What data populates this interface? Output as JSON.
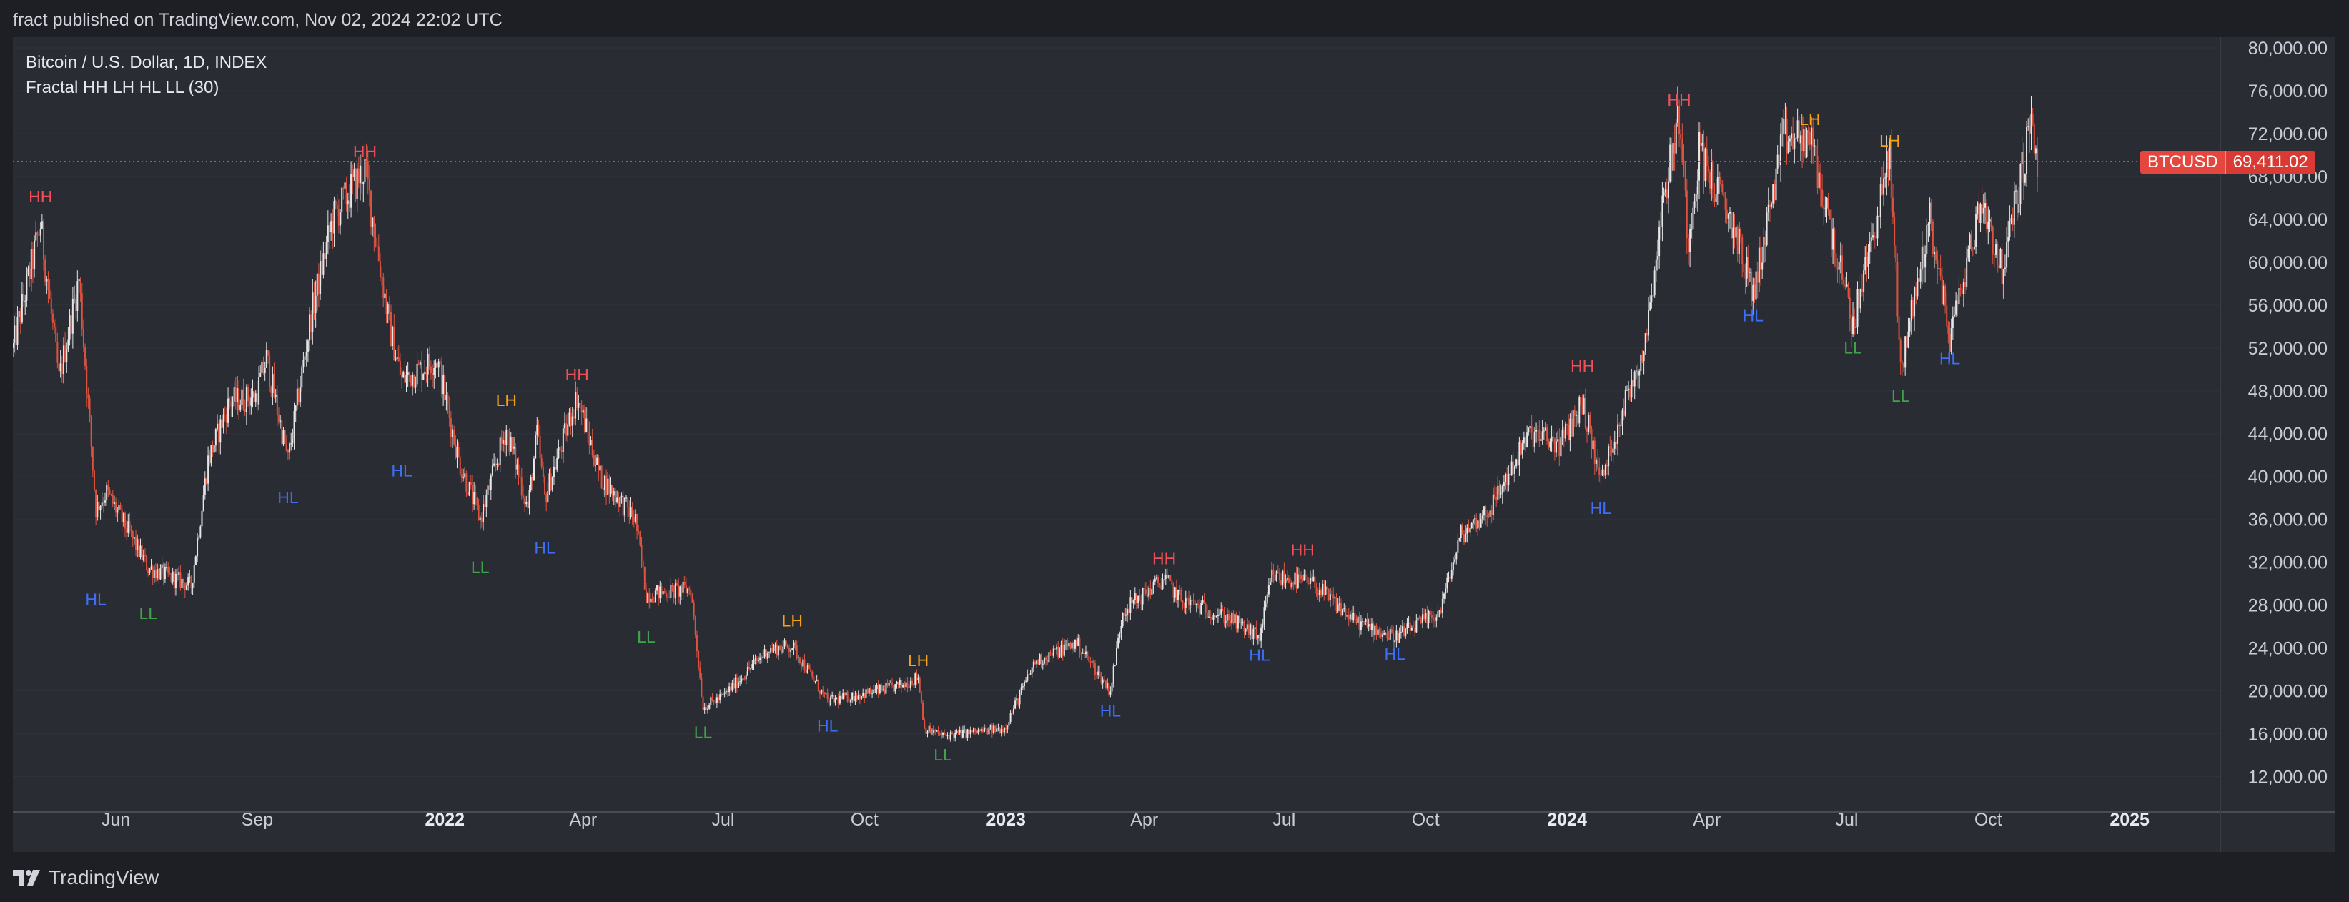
{
  "header": {
    "published": "fract published on TradingView.com, Nov 02, 2024 22:02 UTC"
  },
  "legend": {
    "symbol_line": "Bitcoin / U.S. Dollar, 1D, INDEX",
    "indicator_line": "Fractal HH LH HL LL (30)"
  },
  "price_badge": {
    "symbol": "BTCUSD",
    "price": "69,411.02"
  },
  "footer": {
    "brand": "TradingView"
  },
  "colors": {
    "background": "#2a2c34",
    "up": "#e6e6e6",
    "down": "#e0523e",
    "hh": "#f0505a",
    "lh": "#f7a21b",
    "hl": "#3d6ef7",
    "ll": "#3fa34a",
    "last_price_line": "#e5463e"
  },
  "chart_data": {
    "type": "candlestick",
    "title": "Bitcoin / U.S. Dollar, 1D, INDEX",
    "indicator": "Fractal HH LH HL LL (30)",
    "ylim": [
      8700,
      81000
    ],
    "y_ticks": [
      "12,000.00",
      "16,000.00",
      "20,000.00",
      "24,000.00",
      "28,000.00",
      "32,000.00",
      "36,000.00",
      "40,000.00",
      "44,000.00",
      "48,000.00",
      "52,000.00",
      "56,000.00",
      "60,000.00",
      "64,000.00",
      "68,000.00",
      "72,000.00",
      "76,000.00",
      "80,000.00"
    ],
    "x_range": [
      "2021-03-26",
      "2025-03-01"
    ],
    "x_ticks": [
      {
        "date": "2021-06-01",
        "label": "Jun",
        "bold": false
      },
      {
        "date": "2021-09-01",
        "label": "Sep",
        "bold": false
      },
      {
        "date": "2022-01-01",
        "label": "2022",
        "bold": true
      },
      {
        "date": "2022-04-01",
        "label": "Apr",
        "bold": false
      },
      {
        "date": "2022-07-01",
        "label": "Jul",
        "bold": false
      },
      {
        "date": "2022-10-01",
        "label": "Oct",
        "bold": false
      },
      {
        "date": "2023-01-01",
        "label": "2023",
        "bold": true
      },
      {
        "date": "2023-04-01",
        "label": "Apr",
        "bold": false
      },
      {
        "date": "2023-07-01",
        "label": "Jul",
        "bold": false
      },
      {
        "date": "2023-10-01",
        "label": "Oct",
        "bold": false
      },
      {
        "date": "2024-01-01",
        "label": "2024",
        "bold": true
      },
      {
        "date": "2024-04-01",
        "label": "Apr",
        "bold": false
      },
      {
        "date": "2024-07-01",
        "label": "Jul",
        "bold": false
      },
      {
        "date": "2024-10-01",
        "label": "Oct",
        "bold": false
      },
      {
        "date": "2025-01-01",
        "label": "2025",
        "bold": true
      }
    ],
    "last_price": 69411.02,
    "price_path": [
      [
        "2021-03-26",
        52000
      ],
      [
        "2021-04-13",
        63500
      ],
      [
        "2021-04-25",
        49000
      ],
      [
        "2021-05-08",
        58500
      ],
      [
        "2021-05-19",
        37000
      ],
      [
        "2021-05-26",
        38500
      ],
      [
        "2021-06-22",
        31500
      ],
      [
        "2021-07-20",
        29800
      ],
      [
        "2021-07-31",
        41500
      ],
      [
        "2021-08-14",
        47000
      ],
      [
        "2021-08-31",
        47500
      ],
      [
        "2021-09-07",
        51000
      ],
      [
        "2021-09-21",
        41500
      ],
      [
        "2021-10-06",
        55000
      ],
      [
        "2021-10-20",
        64000
      ],
      [
        "2021-11-10",
        68800
      ],
      [
        "2021-11-26",
        54000
      ],
      [
        "2021-12-04",
        49000
      ],
      [
        "2021-12-27",
        51000
      ],
      [
        "2022-01-10",
        41500
      ],
      [
        "2022-01-24",
        36000
      ],
      [
        "2022-02-10",
        44500
      ],
      [
        "2022-02-24",
        37000
      ],
      [
        "2022-03-02",
        44000
      ],
      [
        "2022-03-07",
        38000
      ],
      [
        "2022-03-28",
        47500
      ],
      [
        "2022-04-12",
        40000
      ],
      [
        "2022-05-05",
        36000
      ],
      [
        "2022-05-12",
        29000
      ],
      [
        "2022-06-10",
        29500
      ],
      [
        "2022-06-18",
        18500
      ],
      [
        "2022-07-01",
        19500
      ],
      [
        "2022-07-30",
        23800
      ],
      [
        "2022-08-15",
        24200
      ],
      [
        "2022-09-07",
        19000
      ],
      [
        "2022-10-25",
        20500
      ],
      [
        "2022-11-05",
        21300
      ],
      [
        "2022-11-09",
        16500
      ],
      [
        "2022-11-21",
        15800
      ],
      [
        "2022-12-31",
        16500
      ],
      [
        "2023-01-20",
        22700
      ],
      [
        "2023-02-16",
        24500
      ],
      [
        "2023-03-10",
        20000
      ],
      [
        "2023-03-18",
        27500
      ],
      [
        "2023-04-14",
        30500
      ],
      [
        "2023-04-25",
        28500
      ],
      [
        "2023-05-26",
        26800
      ],
      [
        "2023-06-15",
        25000
      ],
      [
        "2023-06-23",
        30700
      ],
      [
        "2023-07-20",
        30000
      ],
      [
        "2023-08-16",
        26500
      ],
      [
        "2023-09-11",
        25000
      ],
      [
        "2023-10-10",
        27300
      ],
      [
        "2023-10-24",
        34500
      ],
      [
        "2023-11-12",
        37000
      ],
      [
        "2023-12-08",
        44000
      ],
      [
        "2023-12-28",
        43000
      ],
      [
        "2024-01-11",
        47000
      ],
      [
        "2024-01-23",
        39500
      ],
      [
        "2024-02-09",
        47500
      ],
      [
        "2024-02-20",
        52000
      ],
      [
        "2024-03-05",
        67000
      ],
      [
        "2024-03-14",
        73700
      ],
      [
        "2024-03-20",
        62000
      ],
      [
        "2024-03-27",
        70500
      ],
      [
        "2024-04-19",
        63000
      ],
      [
        "2024-05-01",
        57000
      ],
      [
        "2024-05-21",
        71500
      ],
      [
        "2024-06-07",
        71500
      ],
      [
        "2024-07-05",
        54000
      ],
      [
        "2024-07-29",
        69900
      ],
      [
        "2024-08-05",
        50000
      ],
      [
        "2024-08-24",
        64000
      ],
      [
        "2024-09-06",
        53000
      ],
      [
        "2024-09-27",
        66000
      ],
      [
        "2024-10-10",
        59000
      ],
      [
        "2024-10-29",
        73000
      ],
      [
        "2024-11-02",
        69411
      ]
    ],
    "markers": [
      {
        "label": "HH",
        "date": "2021-04-13",
        "price": 64800,
        "pos": "above"
      },
      {
        "label": "HL",
        "date": "2021-05-19",
        "price": 30000,
        "pos": "below"
      },
      {
        "label": "LL",
        "date": "2021-06-22",
        "price": 28700,
        "pos": "below"
      },
      {
        "label": "HL",
        "date": "2021-09-21",
        "price": 39500,
        "pos": "below"
      },
      {
        "label": "HH",
        "date": "2021-11-10",
        "price": 69000,
        "pos": "above"
      },
      {
        "label": "HL",
        "date": "2021-12-04",
        "price": 42000,
        "pos": "below"
      },
      {
        "label": "LL",
        "date": "2022-01-24",
        "price": 33000,
        "pos": "below"
      },
      {
        "label": "LH",
        "date": "2022-02-10",
        "price": 45800,
        "pos": "above"
      },
      {
        "label": "HL",
        "date": "2022-03-07",
        "price": 34800,
        "pos": "below"
      },
      {
        "label": "HH",
        "date": "2022-03-28",
        "price": 48200,
        "pos": "above"
      },
      {
        "label": "LL",
        "date": "2022-05-12",
        "price": 26500,
        "pos": "below"
      },
      {
        "label": "LL",
        "date": "2022-06-18",
        "price": 17600,
        "pos": "below"
      },
      {
        "label": "LH",
        "date": "2022-08-15",
        "price": 25200,
        "pos": "above"
      },
      {
        "label": "HL",
        "date": "2022-09-07",
        "price": 18200,
        "pos": "below"
      },
      {
        "label": "LH",
        "date": "2022-11-05",
        "price": 21500,
        "pos": "above"
      },
      {
        "label": "LL",
        "date": "2022-11-21",
        "price": 15500,
        "pos": "below"
      },
      {
        "label": "HL",
        "date": "2023-03-10",
        "price": 19600,
        "pos": "below"
      },
      {
        "label": "HH",
        "date": "2023-04-14",
        "price": 31000,
        "pos": "above"
      },
      {
        "label": "HL",
        "date": "2023-06-15",
        "price": 24800,
        "pos": "below"
      },
      {
        "label": "HH",
        "date": "2023-07-13",
        "price": 31800,
        "pos": "above"
      },
      {
        "label": "HL",
        "date": "2023-09-11",
        "price": 24900,
        "pos": "below"
      },
      {
        "label": "HH",
        "date": "2024-01-11",
        "price": 49000,
        "pos": "above"
      },
      {
        "label": "HL",
        "date": "2024-01-23",
        "price": 38500,
        "pos": "below"
      },
      {
        "label": "HH",
        "date": "2024-03-14",
        "price": 73800,
        "pos": "above"
      },
      {
        "label": "HL",
        "date": "2024-05-01",
        "price": 56500,
        "pos": "below"
      },
      {
        "label": "LH",
        "date": "2024-06-07",
        "price": 72000,
        "pos": "above"
      },
      {
        "label": "LL",
        "date": "2024-07-05",
        "price": 53500,
        "pos": "below"
      },
      {
        "label": "LH",
        "date": "2024-07-29",
        "price": 70000,
        "pos": "above"
      },
      {
        "label": "LL",
        "date": "2024-08-05",
        "price": 49000,
        "pos": "below"
      },
      {
        "label": "HL",
        "date": "2024-09-06",
        "price": 52500,
        "pos": "below"
      }
    ]
  }
}
